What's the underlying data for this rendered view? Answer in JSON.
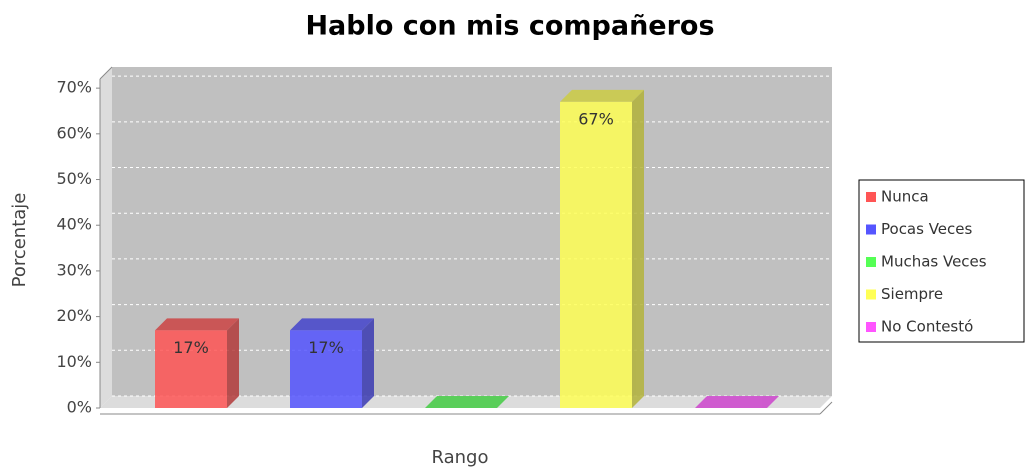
{
  "chart_data": {
    "type": "bar3d",
    "title": "Hablo con mis compañeros",
    "x_label": "Rango",
    "y_label": "Porcentaje",
    "series": [
      {
        "name": "Nunca",
        "color": "#ff5555",
        "values": [
          17
        ],
        "value_labels": [
          "17%"
        ]
      },
      {
        "name": "Pocas Veces",
        "color": "#5555ff",
        "values": [
          17
        ],
        "value_labels": [
          "17%"
        ]
      },
      {
        "name": "Muchas Veces",
        "color": "#55ff55",
        "values": [
          0
        ],
        "value_labels": [
          null
        ]
      },
      {
        "name": "Siempre",
        "color": "#ffff55",
        "values": [
          67
        ],
        "value_labels": [
          "67%"
        ]
      },
      {
        "name": "No Contestó",
        "color": "#ff55ff",
        "values": [
          0
        ],
        "value_labels": [
          null
        ]
      }
    ],
    "ylim": [
      0,
      72
    ],
    "yticks": [
      {
        "value": 0,
        "label": "0%"
      },
      {
        "value": 10,
        "label": "10%"
      },
      {
        "value": 20,
        "label": "20%"
      },
      {
        "value": 30,
        "label": "30%"
      },
      {
        "value": 40,
        "label": "40%"
      },
      {
        "value": 50,
        "label": "50%"
      },
      {
        "value": 60,
        "label": "60%"
      },
      {
        "value": 70,
        "label": "70%"
      }
    ],
    "grid": true,
    "legend": "right"
  }
}
